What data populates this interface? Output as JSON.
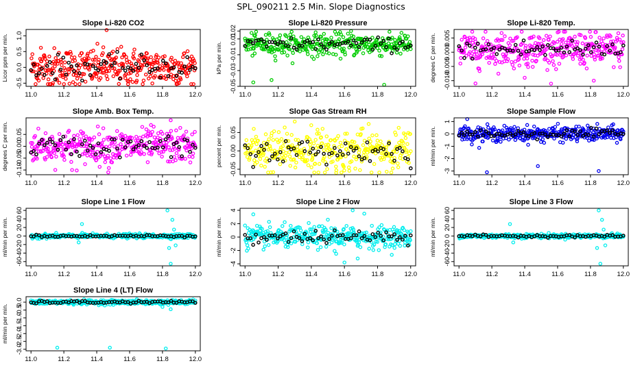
{
  "page_title": "SPL_090211  2.5 Min. Slope Diagnostics",
  "chart_data": [
    {
      "type": "scatter",
      "title": "Slope Li-820 CO2",
      "ylabel": "Licor ppm per min.",
      "xlim": [
        10.97,
        12.03
      ],
      "ylim": [
        -0.6,
        1.2
      ],
      "xticks": [
        "11.0",
        "11.2",
        "11.4",
        "11.6",
        "11.8",
        "12.0"
      ],
      "yticks": [
        -0.5,
        0.0,
        0.5,
        1.0
      ],
      "ytick_labels": [
        "-0.5",
        "0.0",
        "0.5",
        "1.0"
      ],
      "color": "#ff0000",
      "series_mean": 0.0,
      "spread": 0.3,
      "outliers": [
        [
          11.06,
          0.62
        ],
        [
          11.46,
          1.18
        ],
        [
          11.13,
          -0.55
        ],
        [
          11.9,
          -0.5
        ]
      ]
    },
    {
      "type": "scatter",
      "title": "Slope Li-820 Pressure",
      "ylabel": "kPa per min.",
      "xlim": [
        10.97,
        12.03
      ],
      "ylim": [
        -0.05,
        0.022
      ],
      "xticks": [
        "11.0",
        "11.2",
        "11.4",
        "11.6",
        "11.8",
        "12.0"
      ],
      "yticks": [
        -0.05,
        -0.03,
        -0.01,
        0.01,
        0.02
      ],
      "ytick_labels": [
        "-0.05",
        "-0.03",
        "-0.01",
        "0.01",
        "0.02"
      ],
      "color": "#00cc00",
      "series_mean": 0.003,
      "spread": 0.007,
      "outliers": [
        [
          11.05,
          -0.045
        ],
        [
          11.16,
          -0.042
        ],
        [
          11.84,
          -0.048
        ],
        [
          11.64,
          0.02
        ]
      ]
    },
    {
      "type": "scatter",
      "title": "Slope Li-820 Temp.",
      "ylabel": "degrees C per min.",
      "xlim": [
        10.97,
        12.03
      ],
      "ylim": [
        -0.012,
        0.008
      ],
      "xticks": [
        "11.0",
        "11.2",
        "11.4",
        "11.6",
        "11.8",
        "12.0"
      ],
      "yticks": [
        -0.01,
        -0.005,
        0.0,
        0.005
      ],
      "ytick_labels": [
        "-0.010",
        "-0.005",
        "0.000",
        "0.005"
      ],
      "color": "#ff00ff",
      "series_mean": 0.001,
      "spread": 0.003,
      "outliers": [
        [
          11.1,
          -0.011
        ],
        [
          11.82,
          -0.01
        ],
        [
          11.6,
          0.007
        ],
        [
          11.4,
          -0.009
        ]
      ]
    },
    {
      "type": "scatter",
      "title": "Slope Amb. Box Temp.",
      "ylabel": "degrees C per min.",
      "xlim": [
        10.97,
        12.03
      ],
      "ylim": [
        -0.12,
        0.12
      ],
      "xticks": [
        "11.0",
        "11.2",
        "11.4",
        "11.6",
        "11.8",
        "12.0"
      ],
      "yticks": [
        -0.1,
        -0.05,
        0.0,
        0.05
      ],
      "ytick_labels": [
        "-0.10",
        "-0.05",
        "0.00",
        "0.05"
      ],
      "color": "#ff00ff",
      "series_mean": 0.0,
      "spread": 0.035,
      "outliers": [
        [
          11.85,
          0.11
        ],
        [
          11.47,
          -0.11
        ],
        [
          11.73,
          0.09
        ],
        [
          11.25,
          -0.1
        ]
      ]
    },
    {
      "type": "scatter",
      "title": "Slope Gas Stream RH",
      "ylabel": "percent per min.",
      "xlim": [
        10.97,
        12.03
      ],
      "ylim": [
        -0.065,
        0.09
      ],
      "xticks": [
        "11.0",
        "11.2",
        "11.4",
        "11.6",
        "11.8",
        "12.0"
      ],
      "yticks": [
        -0.05,
        0.0,
        0.05
      ],
      "ytick_labels": [
        "-0.05",
        "0.00",
        "0.05"
      ],
      "color": "#ffff00",
      "series_mean": 0.0,
      "spread": 0.028,
      "outliers": [
        [
          11.3,
          0.08
        ],
        [
          11.55,
          -0.06
        ],
        [
          11.4,
          0.07
        ],
        [
          11.17,
          -0.058
        ]
      ]
    },
    {
      "type": "scatter",
      "title": "Slope Sample Flow",
      "ylabel": "ml/min per min.",
      "xlim": [
        10.97,
        12.03
      ],
      "ylim": [
        -3.3,
        1.3
      ],
      "xticks": [
        "11.0",
        "11.2",
        "11.4",
        "11.6",
        "11.8",
        "12.0"
      ],
      "yticks": [
        -3,
        -2,
        -1,
        0,
        1
      ],
      "ytick_labels": [
        "-3",
        "-2",
        "-1",
        "0",
        "1"
      ],
      "color": "#0000ee",
      "series_mean": 0.0,
      "spread": 0.3,
      "outliers": [
        [
          11.17,
          -3.1
        ],
        [
          11.48,
          -2.6
        ],
        [
          11.85,
          -3.0
        ],
        [
          11.05,
          1.2
        ]
      ]
    },
    {
      "type": "scatter",
      "title": "Slope Line 1 Flow",
      "ylabel": "ml/min per min.",
      "xlim": [
        10.97,
        12.03
      ],
      "ylim": [
        -70,
        65
      ],
      "xticks": [
        "11.0",
        "11.2",
        "11.4",
        "11.6",
        "11.8",
        "12.0"
      ],
      "yticks": [
        -60,
        -40,
        -20,
        0,
        20,
        40,
        60
      ],
      "ytick_labels": [
        "-60",
        "-40",
        "-20",
        "0",
        "20",
        "40",
        "60"
      ],
      "color": "#00eeee",
      "series_mean": 0.0,
      "spread": 2.5,
      "outliers": [
        [
          11.83,
          60
        ],
        [
          11.85,
          -65
        ],
        [
          11.86,
          38
        ],
        [
          11.84,
          -28
        ],
        [
          11.31,
          28
        ],
        [
          11.29,
          -15
        ],
        [
          11.87,
          15
        ],
        [
          11.88,
          -22
        ]
      ]
    },
    {
      "type": "scatter",
      "title": "Slope Line 2 Flow",
      "ylabel": "ml/min per min.",
      "xlim": [
        10.97,
        12.03
      ],
      "ylim": [
        -4.3,
        4.3
      ],
      "xticks": [
        "11.0",
        "11.2",
        "11.4",
        "11.6",
        "11.8",
        "12.0"
      ],
      "yticks": [
        -4,
        -2,
        0,
        2,
        4
      ],
      "ytick_labels": [
        "-4",
        "-2",
        "0",
        "2",
        "4"
      ],
      "color": "#00eeee",
      "series_mean": 0.0,
      "spread": 0.8,
      "outliers": [
        [
          11.65,
          4.0
        ],
        [
          11.6,
          -3.8
        ],
        [
          11.72,
          3.5
        ],
        [
          11.68,
          -3.2
        ],
        [
          11.05,
          3.4
        ],
        [
          11.5,
          2.6
        ],
        [
          11.55,
          -2.5
        ]
      ]
    },
    {
      "type": "scatter",
      "title": "Slope Line 3 Flow",
      "ylabel": "ml/min per min.",
      "xlim": [
        10.97,
        12.03
      ],
      "ylim": [
        -70,
        65
      ],
      "xticks": [
        "11.0",
        "11.2",
        "11.4",
        "11.6",
        "11.8",
        "12.0"
      ],
      "yticks": [
        -60,
        -40,
        -20,
        0,
        20,
        40,
        60
      ],
      "ytick_labels": [
        "-60",
        "-40",
        "-20",
        "0",
        "20",
        "40",
        "60"
      ],
      "color": "#00eeee",
      "series_mean": 0.0,
      "spread": 2.5,
      "outliers": [
        [
          11.85,
          60
        ],
        [
          11.86,
          -65
        ],
        [
          11.87,
          38
        ],
        [
          11.84,
          -28
        ],
        [
          11.31,
          28
        ],
        [
          11.33,
          -15
        ],
        [
          11.88,
          15
        ],
        [
          11.89,
          -22
        ]
      ]
    },
    {
      "type": "scatter",
      "title": "Slope Line 4 (LT) Flow",
      "ylabel": "ml/min per min.",
      "xlim": [
        10.97,
        12.03
      ],
      "ylim": [
        -3.1,
        0.35
      ],
      "xticks": [
        "11.0",
        "11.2",
        "11.4",
        "11.6",
        "11.8",
        "12.0"
      ],
      "yticks": [
        -3,
        -2.5,
        -2,
        -1.5,
        -1,
        -0.5,
        0
      ],
      "ytick_labels": [
        "-3.0",
        "-2.5",
        "-2.0",
        "-1.5",
        "-1.0",
        "-0.5",
        "0.0"
      ],
      "color": "#00eeee",
      "series_mean": 0.0,
      "spread": 0.07,
      "outliers": [
        [
          11.16,
          -2.9
        ],
        [
          11.48,
          -2.9
        ],
        [
          11.82,
          -2.95
        ],
        [
          11.85,
          -0.45
        ],
        [
          11.8,
          -0.3
        ]
      ]
    }
  ]
}
